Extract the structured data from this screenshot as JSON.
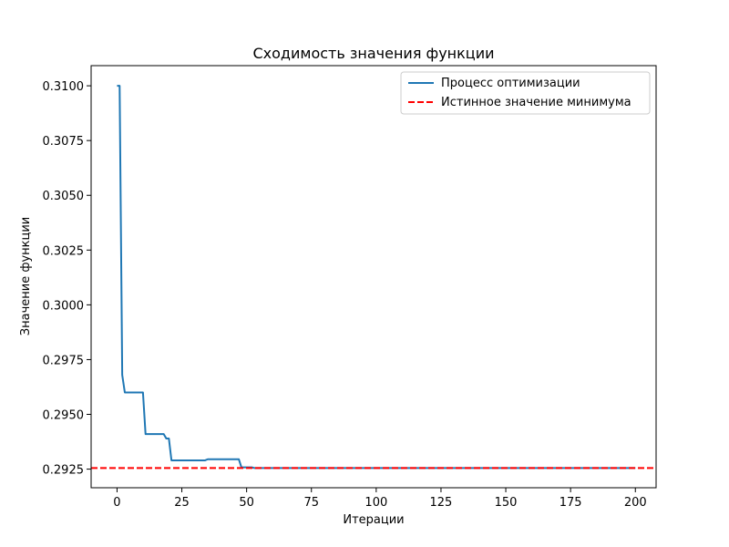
{
  "chart_data": {
    "type": "line",
    "title": "Сходимость значения функции",
    "xlabel": "Итерации",
    "ylabel": "Значение функции",
    "xlim": [
      -10,
      208
    ],
    "ylim": [
      0.29165,
      0.31092
    ],
    "xticks": [
      0,
      25,
      50,
      75,
      100,
      125,
      150,
      175,
      200
    ],
    "xtick_labels": [
      "0",
      "25",
      "50",
      "75",
      "100",
      "125",
      "150",
      "175",
      "200"
    ],
    "yticks": [
      0.2925,
      0.295,
      0.2975,
      0.3,
      0.3025,
      0.305,
      0.3075,
      0.31
    ],
    "ytick_labels": [
      "0.2925",
      "0.2950",
      "0.2975",
      "0.3000",
      "0.3025",
      "0.3050",
      "0.3075",
      "0.3100"
    ],
    "grid": false,
    "legend_position": "top-right",
    "series": [
      {
        "name": "Процесс оптимизации",
        "color": "#1f77b4",
        "style": "solid",
        "points": [
          [
            0,
            0.31
          ],
          [
            1,
            0.31
          ],
          [
            2,
            0.2968
          ],
          [
            3,
            0.296
          ],
          [
            9,
            0.296
          ],
          [
            10,
            0.296
          ],
          [
            11,
            0.2941
          ],
          [
            18,
            0.2941
          ],
          [
            19,
            0.2939
          ],
          [
            20,
            0.2939
          ],
          [
            21,
            0.2929
          ],
          [
            34,
            0.2929
          ],
          [
            35,
            0.29295
          ],
          [
            47,
            0.29295
          ],
          [
            48,
            0.29258
          ],
          [
            52,
            0.29258
          ],
          [
            53,
            0.29255
          ],
          [
            200,
            0.29255
          ]
        ]
      },
      {
        "name": "Истинное значение минимума",
        "color": "#ff0000",
        "style": "dashed",
        "hline": 0.29255
      }
    ]
  }
}
